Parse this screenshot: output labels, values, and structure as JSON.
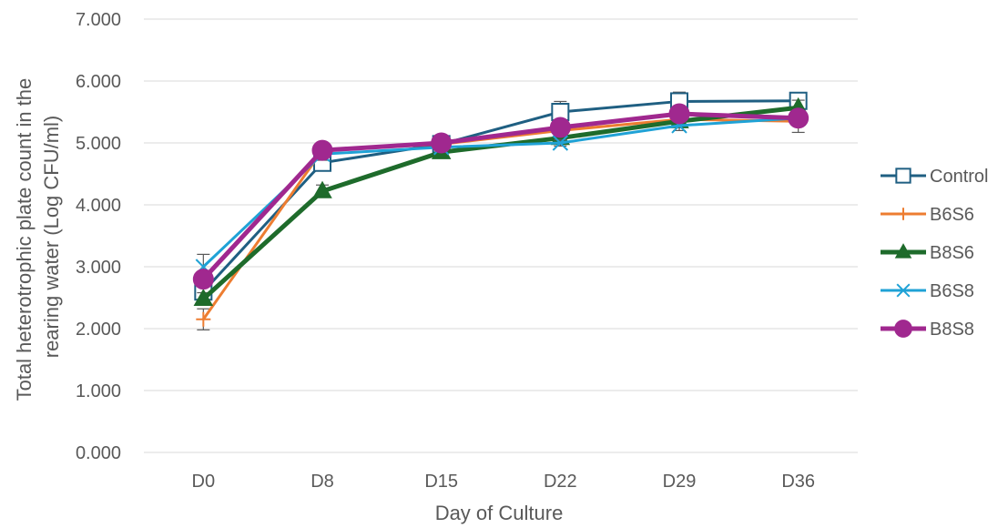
{
  "chart_data": {
    "type": "line",
    "title": "",
    "xlabel": "Day of Culture",
    "ylabel": "Total heterotrophic plate count in the rearing water (Log CFU/ml)",
    "ylabel_lines": [
      "Total heterotrophic plate count in the",
      "rearing water (Log CFU/ml)"
    ],
    "categories": [
      "D0",
      "D8",
      "D15",
      "D22",
      "D29",
      "D36"
    ],
    "ylim": [
      0,
      7
    ],
    "yticks": [
      "0.000",
      "1.000",
      "2.000",
      "3.000",
      "4.000",
      "5.000",
      "6.000",
      "7.000"
    ],
    "grid": true,
    "legend_position": "right",
    "series": [
      {
        "name": "Control",
        "color": "#1f5f82",
        "marker": "square-open",
        "values": [
          2.6,
          4.68,
          4.98,
          5.5,
          5.67,
          5.68
        ],
        "errors": [
          0.15,
          0.1,
          0.05,
          0.17,
          0.15,
          0.1
        ]
      },
      {
        "name": "B6S6",
        "color": "#ed7d31",
        "marker": "plus",
        "values": [
          2.15,
          4.88,
          4.98,
          5.2,
          5.38,
          5.35
        ],
        "errors": [
          0.17,
          0.08,
          0.05,
          0.08,
          0.1,
          0.18
        ]
      },
      {
        "name": "B8S6",
        "color": "#1e6b2b",
        "marker": "triangle",
        "values": [
          2.48,
          4.22,
          4.85,
          5.08,
          5.35,
          5.57
        ],
        "errors": [
          0.1,
          0.1,
          0.05,
          0.08,
          0.1,
          0.12
        ]
      },
      {
        "name": "B6S8",
        "color": "#1fa2d6",
        "marker": "x",
        "values": [
          3.0,
          4.82,
          4.93,
          5.0,
          5.28,
          5.4
        ],
        "errors": [
          0.2,
          0.1,
          0.05,
          0.05,
          0.08,
          0.1
        ]
      },
      {
        "name": "B8S8",
        "color": "#a0288f",
        "marker": "circle",
        "values": [
          2.8,
          4.88,
          5.0,
          5.25,
          5.47,
          5.4
        ],
        "errors": [
          0.1,
          0.05,
          0.05,
          0.05,
          0.05,
          0.08
        ]
      }
    ]
  }
}
